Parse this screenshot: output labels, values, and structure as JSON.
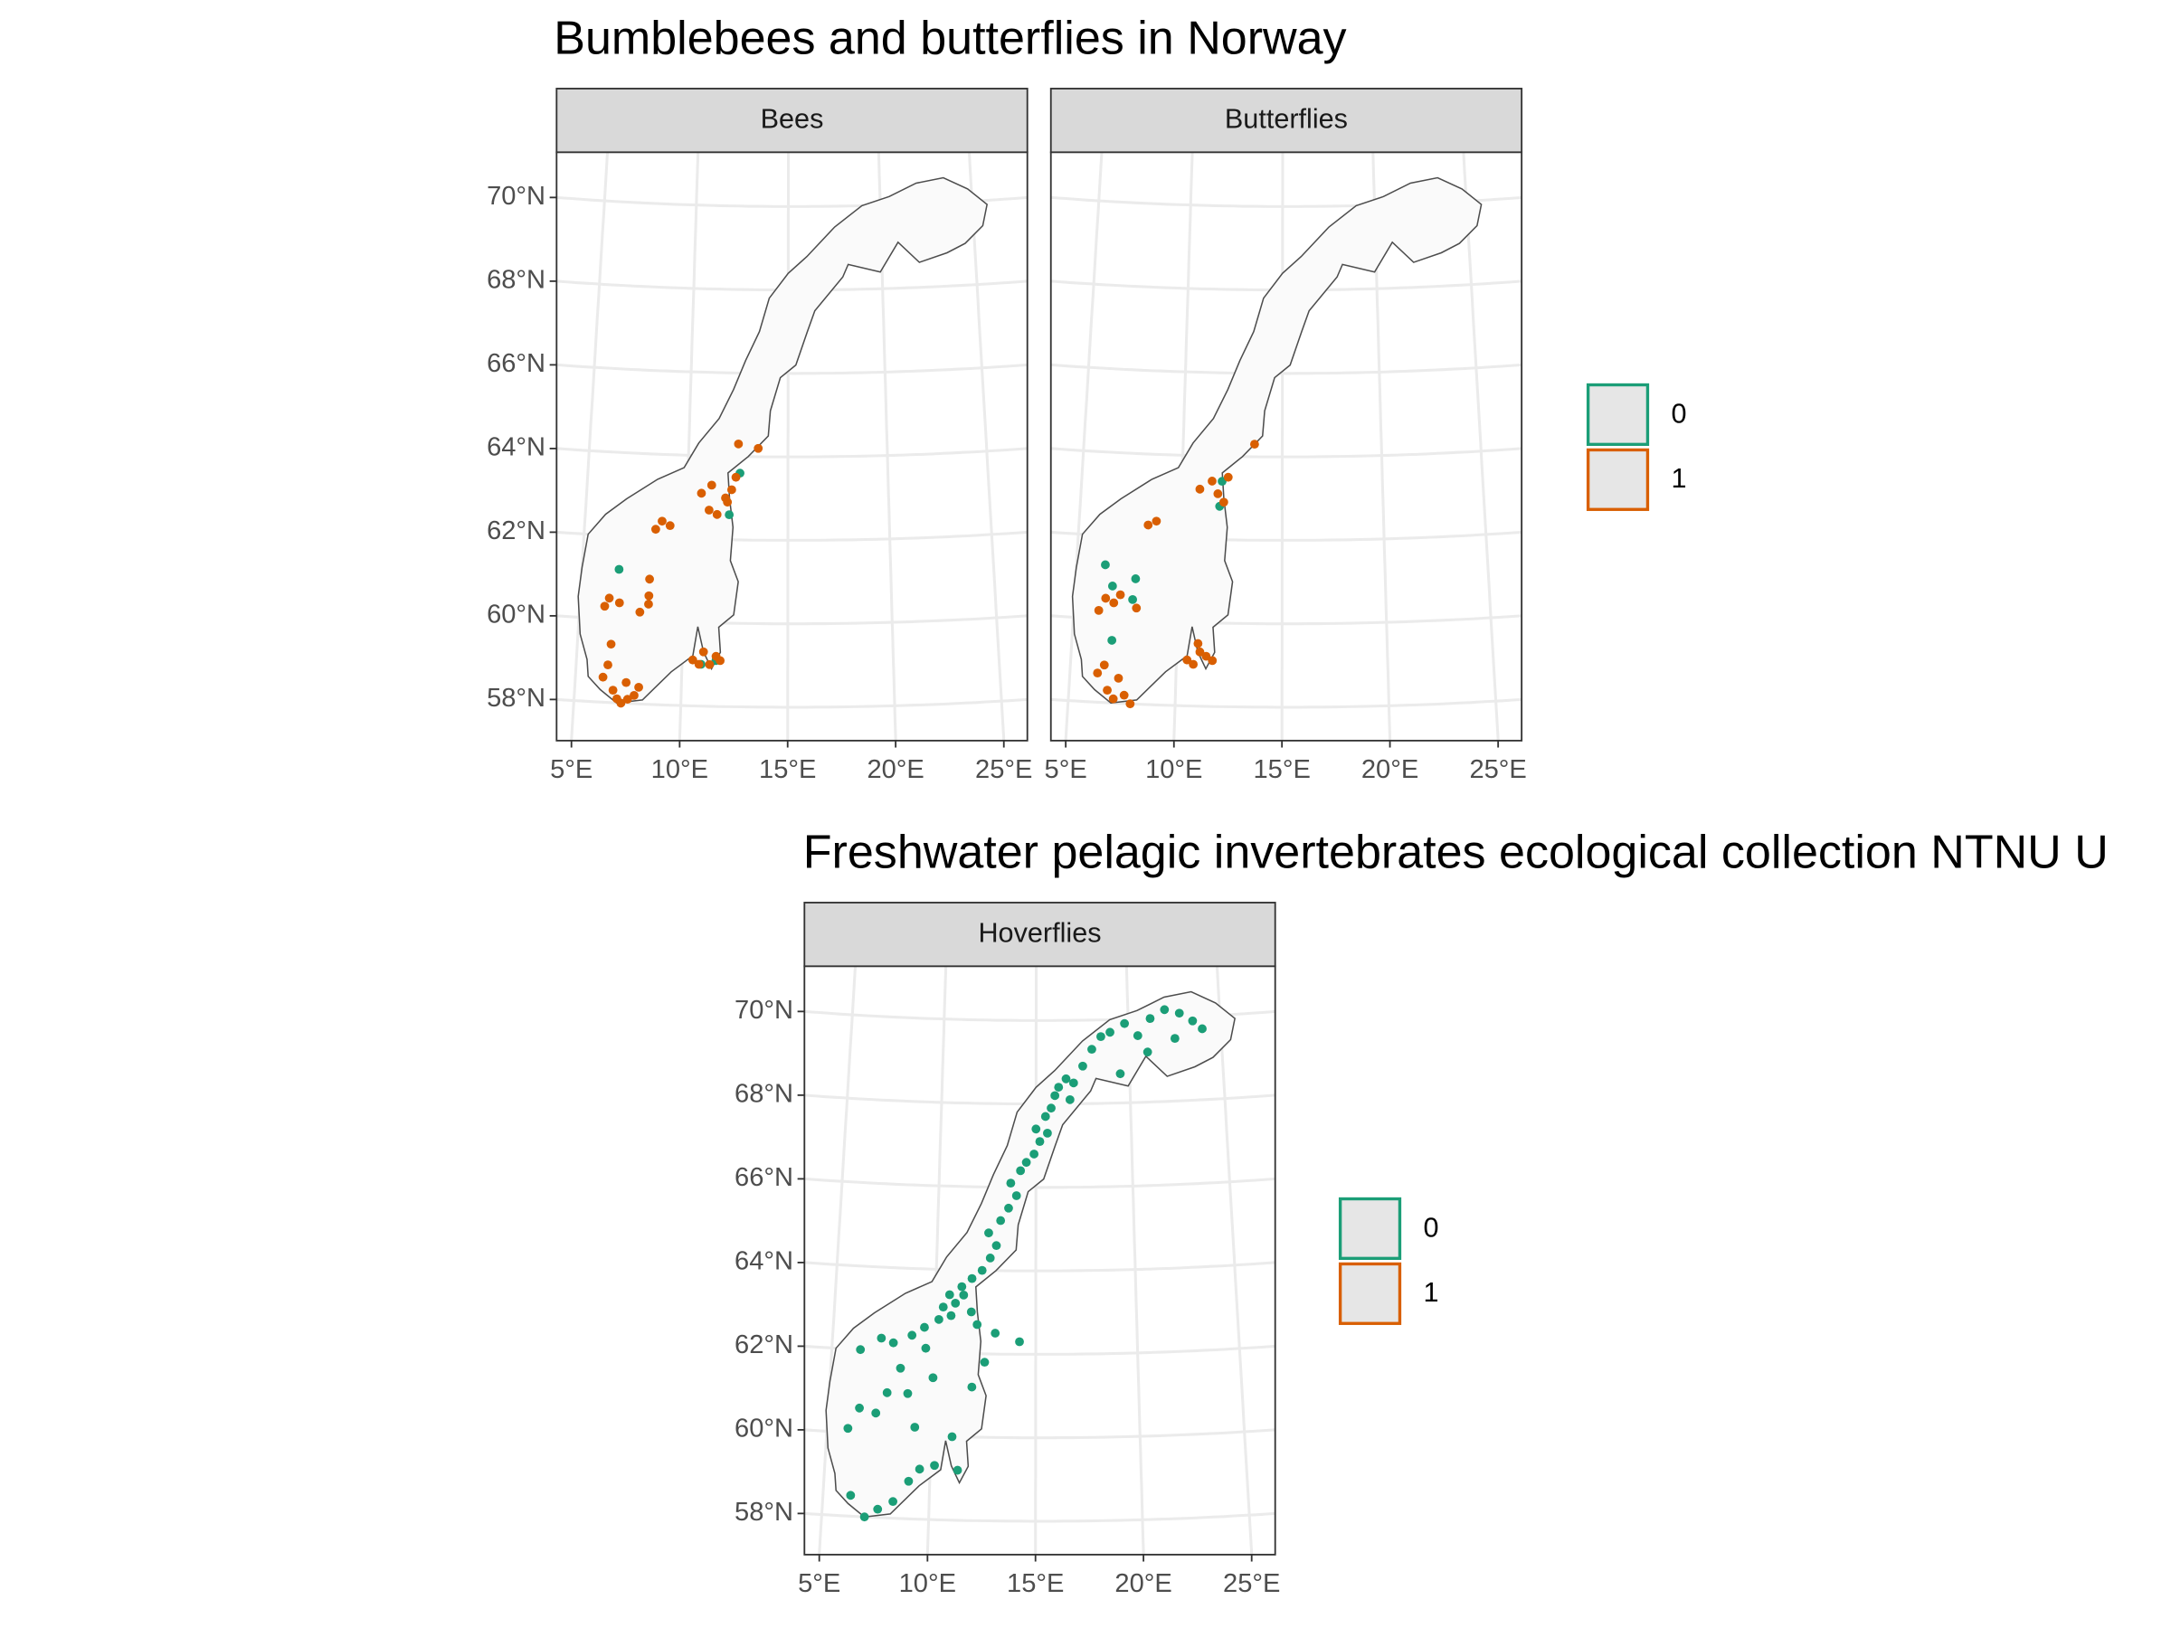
{
  "chart_data": [
    {
      "type": "map",
      "title": "Bumblebees and butterflies in Norway",
      "xlim": [
        4.3,
        26.1
      ],
      "ylim": [
        57.2,
        71.3
      ],
      "xticks": [
        {
          "value": 5,
          "label": "5°E"
        },
        {
          "value": 10,
          "label": "10°E"
        },
        {
          "value": 15,
          "label": "15°E"
        },
        {
          "value": 20,
          "label": "20°E"
        },
        {
          "value": 25,
          "label": "25°E"
        }
      ],
      "yticks": [
        {
          "value": 58,
          "label": "58°N"
        },
        {
          "value": 60,
          "label": "60°N"
        },
        {
          "value": 62,
          "label": "62°N"
        },
        {
          "value": 64,
          "label": "64°N"
        },
        {
          "value": 66,
          "label": "66°N"
        },
        {
          "value": 68,
          "label": "68°N"
        },
        {
          "value": 70,
          "label": "70°N"
        }
      ],
      "grid": true,
      "series": [
        {
          "name": "0",
          "color": "#1b9e77"
        },
        {
          "name": "1",
          "color": "#d95f02"
        }
      ],
      "panels": [
        {
          "label": "Bees",
          "x": [
            [
              6.8,
              11.6,
              12.1,
              12.6,
              10.9
            ],
            [
              6.3,
              6.5,
              6.8,
              7.0,
              6.6,
              7.2,
              7.5,
              7.8,
              7.4,
              8.0,
              6.2,
              6.4,
              6.9,
              8.3,
              8.3,
              8.3,
              7.9,
              8.5,
              8.8,
              9.2,
              10.5,
              10.8,
              11.0,
              11.3,
              11.6,
              11.8,
              10.7,
              11.2,
              11.9,
              12.4,
              12.2,
              12.0,
              11.1,
              11.5,
              13.5,
              12.5
            ]
          ],
          "values": [
            [
              61.2,
              59.1,
              62.6,
              63.6,
              59.0
            ],
            [
              58.6,
              58.9,
              58.3,
              58.1,
              59.4,
              58.0,
              58.1,
              58.2,
              58.5,
              58.4,
              60.3,
              60.5,
              60.4,
              60.4,
              60.6,
              61.0,
              60.2,
              62.2,
              62.4,
              62.3,
              59.1,
              59.0,
              59.3,
              59.0,
              59.2,
              59.1,
              63.1,
              63.3,
              63.0,
              63.5,
              63.2,
              62.9,
              62.7,
              62.6,
              64.2,
              64.3
            ]
          ]
        },
        {
          "label": "Butterflies",
          "x": [
            [
              6.4,
              7.8,
              6.9,
              11.9,
              12.0,
              6.8,
              7.9
            ],
            [
              6.3,
              6.6,
              6.8,
              7.1,
              7.3,
              7.6,
              7.9,
              6.2,
              6.5,
              6.9,
              7.2,
              8.0,
              8.4,
              8.8,
              10.5,
              10.8,
              11.1,
              11.4,
              11.7,
              11.0,
              10.9,
              11.5,
              11.8,
              12.3,
              12.1,
              13.6
            ]
          ],
          "values": [
            [
              61.3,
              60.5,
              59.5,
              62.8,
              63.4,
              60.8,
              61.0
            ],
            [
              58.7,
              58.9,
              58.3,
              58.1,
              58.6,
              58.2,
              58.0,
              60.2,
              60.5,
              60.4,
              60.6,
              60.3,
              62.3,
              62.4,
              59.1,
              59.0,
              59.3,
              59.2,
              59.1,
              59.5,
              63.2,
              63.4,
              63.1,
              63.5,
              62.9,
              64.3
            ]
          ]
        }
      ]
    },
    {
      "type": "map",
      "title": "Freshwater pelagic invertebrates ecological collection NTNU U",
      "xlim": [
        4.3,
        26.1
      ],
      "ylim": [
        57.2,
        71.3
      ],
      "xticks": [
        {
          "value": 5,
          "label": "5°E"
        },
        {
          "value": 10,
          "label": "10°E"
        },
        {
          "value": 15,
          "label": "15°E"
        },
        {
          "value": 20,
          "label": "20°E"
        },
        {
          "value": 25,
          "label": "25°E"
        }
      ],
      "yticks": [
        {
          "value": 58,
          "label": "58°N"
        },
        {
          "value": 60,
          "label": "60°N"
        },
        {
          "value": 62,
          "label": "62°N"
        },
        {
          "value": 64,
          "label": "64°N"
        },
        {
          "value": 66,
          "label": "66°N"
        },
        {
          "value": 68,
          "label": "68°N"
        },
        {
          "value": 70,
          "label": "70°N"
        }
      ],
      "grid": true,
      "series": [
        {
          "name": "0",
          "color": "#1b9e77"
        },
        {
          "name": "1",
          "color": "#d95f02"
        }
      ],
      "panels": [
        {
          "label": "Hoverflies",
          "x": [
            [
              6.0,
              6.3,
              7.0,
              7.6,
              8.3,
              9.0,
              9.5,
              10.2,
              11.3,
              11.0,
              6.5,
              7.3,
              7.8,
              8.4,
              9.6,
              8.8,
              6.4,
              7.4,
              8.0,
              8.9,
              9.5,
              10.2,
              10.8,
              11.0,
              11.4,
              11.8,
              12.1,
              10.4,
              10.7,
              11.3,
              11.8,
              12.3,
              12.7,
              13.0,
              12.6,
              13.2,
              13.6,
              14.0,
              13.7,
              14.2,
              14.5,
              14.9,
              15.2,
              15.0,
              15.5,
              15.8,
              16.0,
              16.2,
              16.6,
              17.0,
              17.5,
              18.0,
              18.5,
              19.0,
              19.8,
              20.5,
              21.2,
              22.0,
              22.8,
              23.5,
              24.0,
              19.5,
              21.0,
              22.5,
              13.0,
              14.2,
              11.9,
              12.5,
              10.0,
              9.2,
              15.6,
              16.8
            ],
            []
          ],
          "values": [
            [
              60.1,
              58.5,
              58.0,
              58.2,
              58.4,
              58.9,
              59.2,
              59.3,
              59.2,
              60.0,
              60.6,
              60.5,
              61.0,
              61.6,
              62.1,
              61.0,
              62.0,
              62.3,
              62.2,
              62.4,
              62.6,
              62.8,
              62.9,
              63.2,
              63.4,
              63.0,
              62.7,
              63.1,
              63.4,
              63.6,
              63.8,
              64.0,
              64.3,
              64.6,
              64.9,
              65.2,
              65.5,
              65.8,
              66.1,
              66.4,
              66.6,
              66.8,
              67.1,
              67.4,
              67.7,
              67.9,
              68.2,
              68.4,
              68.6,
              68.5,
              68.9,
              69.3,
              69.6,
              69.7,
              69.9,
              69.6,
              70.0,
              70.2,
              70.1,
              69.9,
              69.7,
              68.7,
              69.2,
              69.5,
              62.5,
              62.3,
              61.2,
              61.8,
              61.4,
              60.2,
              67.3,
              68.1
            ],
            []
          ]
        }
      ]
    }
  ]
}
